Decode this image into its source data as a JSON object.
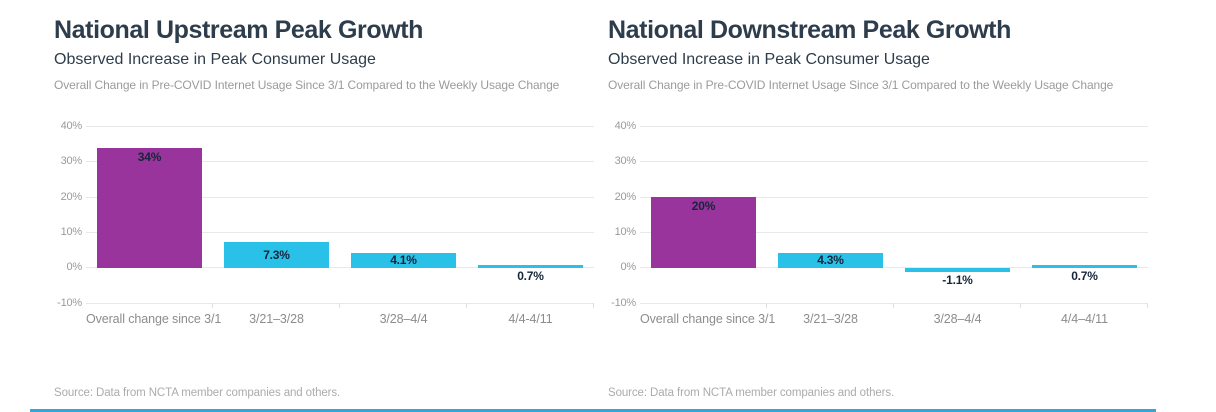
{
  "colors": {
    "accent_purple": "#98349b",
    "accent_cyan": "#29c1e8",
    "bottom_rule": "#2fa9dc",
    "title_text": "#2e3d4c",
    "value_label_text": "#16253a",
    "gridline": "#e8e8e8"
  },
  "chart_data": [
    {
      "type": "bar",
      "title": "National Upstream Peak Growth",
      "subtitle": "Observed Increase in Peak Consumer Usage",
      "caption": "Overall Change in Pre-COVID Internet Usage Since 3/1 Compared to the Weekly Usage Change",
      "source": "Source: Data from NCTA member companies and others.",
      "categories": [
        "Overall change since 3/1",
        "3/21–3/28",
        "3/28–4/4",
        "4/4-4/11"
      ],
      "values": [
        34,
        7.3,
        4.1,
        0.7
      ],
      "value_labels": [
        "34%",
        "7.3%",
        "4.1%",
        "0.7%"
      ],
      "bar_colors": [
        "#98349b",
        "#29c1e8",
        "#29c1e8",
        "#29c1e8"
      ],
      "ylim": [
        -10,
        40
      ],
      "yticks": [
        40,
        30,
        20,
        10,
        0,
        -10
      ],
      "ytick_labels": [
        "40%",
        "30%",
        "20%",
        "10%",
        "0%",
        "-10%"
      ],
      "grid": true,
      "legend": "none",
      "xlabel": "",
      "ylabel": ""
    },
    {
      "type": "bar",
      "title": "National Downstream Peak Growth",
      "subtitle": "Observed Increase in Peak Consumer Usage",
      "caption": "Overall Change in Pre-COVID Internet Usage Since 3/1 Compared to the Weekly Usage Change",
      "source": "Source: Data from NCTA member companies and others.",
      "categories": [
        "Overall change since 3/1",
        "3/21–3/28",
        "3/28–4/4",
        "4/4–4/11"
      ],
      "values": [
        20,
        4.3,
        -1.1,
        0.7
      ],
      "value_labels": [
        "20%",
        "4.3%",
        "-1.1%",
        "0.7%"
      ],
      "bar_colors": [
        "#98349b",
        "#29c1e8",
        "#29c1e8",
        "#29c1e8"
      ],
      "ylim": [
        -10,
        40
      ],
      "yticks": [
        40,
        30,
        20,
        10,
        0,
        -10
      ],
      "ytick_labels": [
        "40%",
        "30%",
        "20%",
        "10%",
        "0%",
        "-10%"
      ],
      "grid": true,
      "legend": "none",
      "xlabel": "",
      "ylabel": ""
    }
  ]
}
